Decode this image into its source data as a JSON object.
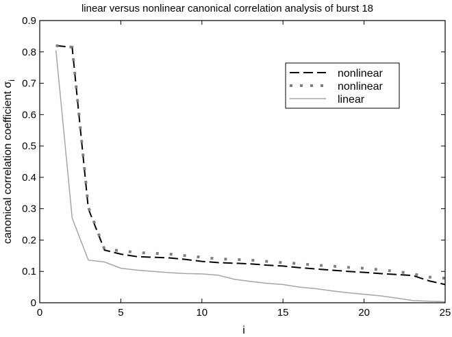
{
  "chart_data": {
    "type": "line",
    "title": "linear versus nonlinear canonical correlation analysis of burst 18",
    "xlabel": "i",
    "ylabel": "canonical correlation coefficient σ",
    "ylabel_subscript": "i",
    "xlim": [
      0,
      25
    ],
    "ylim": [
      0,
      0.9
    ],
    "xticks": [
      "0",
      "5",
      "10",
      "15",
      "20",
      "25"
    ],
    "yticks": [
      "0",
      "0.1",
      "0.2",
      "0.3",
      "0.4",
      "0.5",
      "0.6",
      "0.7",
      "0.8",
      "0.9"
    ],
    "grid": false,
    "legend": "top-right",
    "x": [
      1,
      2,
      3,
      4,
      5,
      6,
      7,
      8,
      9,
      10,
      11,
      12,
      13,
      14,
      15,
      16,
      17,
      18,
      19,
      20,
      21,
      22,
      23,
      24,
      25
    ],
    "series": [
      {
        "name": "nonlinear",
        "style": "dashed",
        "color": "#000000",
        "values": [
          0.82,
          0.815,
          0.3,
          0.168,
          0.155,
          0.147,
          0.145,
          0.143,
          0.138,
          0.132,
          0.128,
          0.126,
          0.124,
          0.12,
          0.117,
          0.112,
          0.108,
          0.104,
          0.1,
          0.097,
          0.093,
          0.09,
          0.087,
          0.07,
          0.058
        ]
      },
      {
        "name": "nonlinear",
        "style": "dotted",
        "color": "#808080",
        "values": [
          0.82,
          0.815,
          0.305,
          0.17,
          0.166,
          0.16,
          0.158,
          0.155,
          0.15,
          0.145,
          0.14,
          0.138,
          0.136,
          0.132,
          0.128,
          0.125,
          0.12,
          0.117,
          0.113,
          0.11,
          0.105,
          0.1,
          0.092,
          0.082,
          0.078
        ]
      },
      {
        "name": "linear",
        "style": "solid",
        "color": "#a6a6a6",
        "values": [
          0.805,
          0.27,
          0.136,
          0.13,
          0.11,
          0.104,
          0.1,
          0.096,
          0.093,
          0.092,
          0.088,
          0.075,
          0.068,
          0.062,
          0.058,
          0.05,
          0.045,
          0.038,
          0.032,
          0.027,
          0.022,
          0.015,
          0.007,
          0.005,
          0.003
        ]
      }
    ]
  }
}
